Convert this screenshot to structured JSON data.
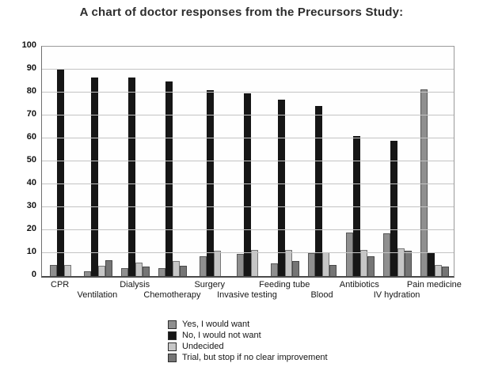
{
  "title": "A chart of doctor responses from the Precursors Study:",
  "chart_data": {
    "type": "bar",
    "title": "A chart of doctor responses from the Precursors Study:",
    "categories": [
      "CPR",
      "Ventilation",
      "Dialysis",
      "Chemotherapy",
      "Surgery",
      "Invasive testing",
      "Feeding tube",
      "Blood",
      "Antibiotics",
      "IV hydration",
      "Pain medicine"
    ],
    "series": [
      {
        "name": "Yes, I would want",
        "color": "#8f8f8f",
        "values": [
          5,
          2,
          3.5,
          3.5,
          8.5,
          9.5,
          5.5,
          10,
          19,
          18.5,
          81.5
        ]
      },
      {
        "name": "No, I would not want",
        "color": "#161616",
        "values": [
          90,
          86.5,
          86.5,
          85,
          81,
          79.5,
          77,
          74,
          61,
          59,
          10
        ]
      },
      {
        "name": "Undecided",
        "color": "#c6c6c6",
        "values": [
          5,
          4.5,
          6,
          6.5,
          11,
          11.5,
          11.5,
          10.5,
          11.5,
          12,
          5
        ]
      },
      {
        "name": "Trial, but stop if no clear improvement",
        "color": "#757575",
        "values": [
          0,
          7,
          4,
          4.5,
          0,
          0,
          6.5,
          5,
          8.5,
          11,
          4
        ]
      }
    ],
    "xlabel": "",
    "ylabel": "",
    "ylim": [
      0,
      100
    ],
    "yticks": [
      0,
      10,
      20,
      30,
      40,
      50,
      60,
      70,
      80,
      90,
      100
    ],
    "grid": true,
    "legend_position": "bottom",
    "background": "#ffffff",
    "gridline_color": "#c3c3c3"
  }
}
